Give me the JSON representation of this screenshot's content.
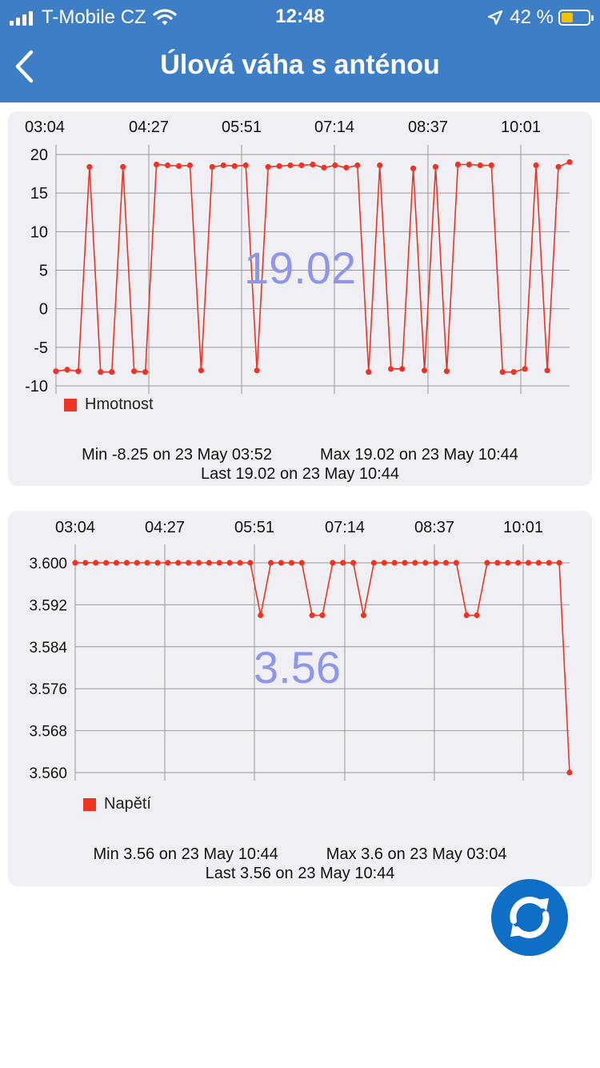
{
  "status_bar": {
    "carrier": "T-Mobile CZ",
    "time": "12:48",
    "battery": "42 %",
    "icons": [
      "signal-icon",
      "wifi-icon",
      "location-arrow-icon",
      "battery-icon"
    ]
  },
  "nav": {
    "title": "Úlová váha s anténou",
    "back_icon": "chevron-left-icon"
  },
  "colors": {
    "header": "#3d7ec6",
    "series": "#ee3322",
    "big_value": "#8d96e8",
    "card_bg": "#f0eff4",
    "refresh_button": "#0f6ec5"
  },
  "charts": [
    {
      "id": "weight",
      "big_value": "19.02",
      "legend": "Hmotnost",
      "stats": {
        "min": "Min -8.25 on 23 May 03:52",
        "max": "Max 19.02 on 23 May 10:44",
        "last": "Last 19.02 on 23 May 10:44"
      }
    },
    {
      "id": "voltage",
      "big_value": "3.56",
      "legend": "Napětí",
      "stats": {
        "min": "Min 3.56 on 23 May 10:44",
        "max": "Max 3.6 on 23 May 03:04",
        "last": "Last 3.56 on 23 May 10:44"
      }
    }
  ],
  "refresh_button": {
    "icon": "refresh-icon"
  },
  "chart_data": [
    {
      "type": "line",
      "x_ticks": [
        "03:04",
        "04:27",
        "05:51",
        "07:14",
        "08:37",
        "10:01"
      ],
      "y_ticks": [
        "20",
        "15",
        "10",
        "5",
        "0",
        "-5",
        "-10"
      ],
      "ylim": [
        -10,
        20
      ],
      "grid": true,
      "legend_position": "bottom-left",
      "series": [
        {
          "name": "Hmotnost",
          "values": [
            -8.1,
            -7.9,
            -8.1,
            18.4,
            -8.2,
            -8.2,
            18.4,
            -8.1,
            -8.2,
            18.7,
            18.6,
            18.5,
            18.6,
            -8.0,
            18.4,
            18.6,
            18.5,
            18.6,
            -8.0,
            18.4,
            18.5,
            18.6,
            18.6,
            18.7,
            18.3,
            18.6,
            18.3,
            18.6,
            -8.2,
            18.6,
            -7.8,
            -7.8,
            18.2,
            -8.0,
            18.4,
            -8.1,
            18.7,
            18.7,
            18.6,
            18.6,
            -8.2,
            -8.2,
            -7.8,
            18.6,
            -8.0,
            18.4,
            19.02
          ]
        }
      ]
    },
    {
      "type": "line",
      "x_ticks": [
        "03:04",
        "04:27",
        "05:51",
        "07:14",
        "08:37",
        "10:01"
      ],
      "y_ticks": [
        "3.600",
        "3.592",
        "3.584",
        "3.576",
        "3.568",
        "3.560"
      ],
      "ylim": [
        3.56,
        3.6
      ],
      "grid": true,
      "legend_position": "bottom-left",
      "series": [
        {
          "name": "Napětí",
          "values": [
            3.6,
            3.6,
            3.6,
            3.6,
            3.6,
            3.6,
            3.6,
            3.6,
            3.6,
            3.6,
            3.6,
            3.6,
            3.6,
            3.6,
            3.6,
            3.6,
            3.6,
            3.6,
            3.59,
            3.6,
            3.6,
            3.6,
            3.6,
            3.59,
            3.59,
            3.6,
            3.6,
            3.6,
            3.59,
            3.6,
            3.6,
            3.6,
            3.6,
            3.6,
            3.6,
            3.6,
            3.6,
            3.6,
            3.59,
            3.59,
            3.6,
            3.6,
            3.6,
            3.6,
            3.6,
            3.6,
            3.6,
            3.6,
            3.56
          ]
        }
      ]
    }
  ]
}
